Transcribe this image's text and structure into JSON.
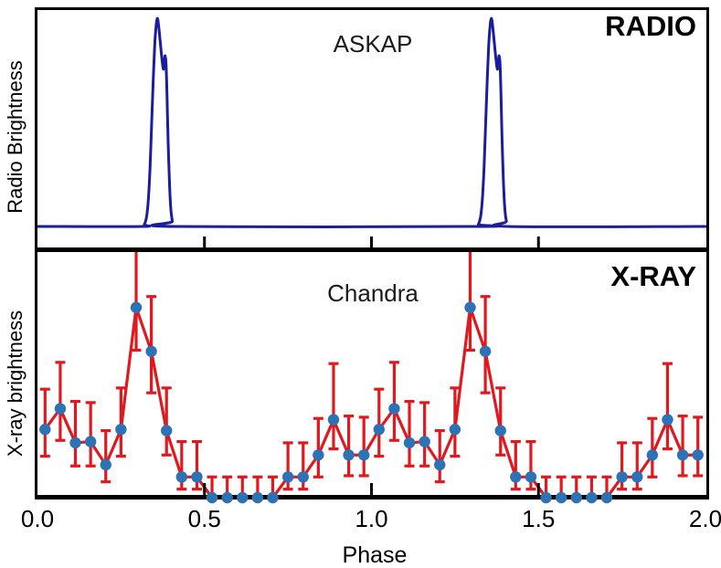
{
  "axis": {
    "xlabel": "Phase",
    "xlim": [
      0,
      2
    ],
    "tick_labels": [
      "0.0",
      "0.5",
      "1.0",
      "1.5",
      "2.0"
    ],
    "tick_values": [
      0,
      0.5,
      1.0,
      1.5,
      2.0
    ],
    "inner_tick_values": [
      0.5,
      1.0,
      1.5
    ]
  },
  "radio_panel": {
    "label": "RADIO",
    "instrument": "ASKAP",
    "ylabel": "Radio Brightness",
    "curve_color": "#1c1c9c"
  },
  "xray_panel": {
    "label": "X-RAY",
    "instrument": "Chandra",
    "ylabel": "X-ray brightness",
    "errorbar_color": "#e0191f",
    "marker_color": "#2c72b4"
  },
  "chart_data": [
    {
      "type": "line",
      "panel": "RADIO",
      "instrument": "ASKAP",
      "ylabel": "Radio Brightness",
      "xlabel": "Phase",
      "xlim": [
        0,
        2
      ],
      "color": "#1c1c9c",
      "value_units": "normalized brightness, 0 = baseline, 1 = pulse peak",
      "points": [
        [
          0.0,
          0.0
        ],
        [
          0.31,
          0.0
        ],
        [
          0.32,
          0.01
        ],
        [
          0.327,
          0.05
        ],
        [
          0.332,
          0.13
        ],
        [
          0.337,
          0.28
        ],
        [
          0.342,
          0.5
        ],
        [
          0.347,
          0.72
        ],
        [
          0.351,
          0.87
        ],
        [
          0.355,
          0.96
        ],
        [
          0.359,
          1.0
        ],
        [
          0.363,
          0.96
        ],
        [
          0.368,
          0.88
        ],
        [
          0.373,
          0.8
        ],
        [
          0.377,
          0.755
        ],
        [
          0.38,
          0.79
        ],
        [
          0.382,
          0.82
        ],
        [
          0.385,
          0.78
        ],
        [
          0.388,
          0.62
        ],
        [
          0.391,
          0.42
        ],
        [
          0.395,
          0.22
        ],
        [
          0.399,
          0.09
        ],
        [
          0.404,
          0.025
        ],
        [
          0.41,
          0.0
        ],
        [
          1.31,
          0.0
        ],
        [
          1.32,
          0.01
        ],
        [
          1.327,
          0.05
        ],
        [
          1.332,
          0.13
        ],
        [
          1.337,
          0.28
        ],
        [
          1.342,
          0.5
        ],
        [
          1.347,
          0.72
        ],
        [
          1.351,
          0.87
        ],
        [
          1.355,
          0.96
        ],
        [
          1.359,
          1.0
        ],
        [
          1.363,
          0.96
        ],
        [
          1.368,
          0.88
        ],
        [
          1.373,
          0.8
        ],
        [
          1.377,
          0.755
        ],
        [
          1.38,
          0.79
        ],
        [
          1.382,
          0.82
        ],
        [
          1.385,
          0.78
        ],
        [
          1.388,
          0.62
        ],
        [
          1.391,
          0.42
        ],
        [
          1.395,
          0.22
        ],
        [
          1.399,
          0.09
        ],
        [
          1.404,
          0.025
        ],
        [
          1.41,
          0.0
        ],
        [
          2.0,
          0.0
        ]
      ]
    },
    {
      "type": "errorbar-line",
      "panel": "X-RAY",
      "instrument": "Chandra",
      "ylabel": "X-ray brightness",
      "xlabel": "Phase",
      "xlim": [
        0,
        2
      ],
      "line_color": "#e0191f",
      "marker_color": "#2c72b4",
      "value_units": "normalized brightness, 0 = bottom axis, 1 = panel top",
      "points": [
        {
          "phase": 0.0227,
          "v": 0.28,
          "eu": 0.165,
          "ed": 0.11
        },
        {
          "phase": 0.0682,
          "v": 0.365,
          "eu": 0.19,
          "ed": 0.13
        },
        {
          "phase": 0.1136,
          "v": 0.225,
          "eu": 0.17,
          "ed": 0.095
        },
        {
          "phase": 0.1591,
          "v": 0.23,
          "eu": 0.16,
          "ed": 0.1
        },
        {
          "phase": 0.2045,
          "v": 0.135,
          "eu": 0.14,
          "ed": 0.07
        },
        {
          "phase": 0.25,
          "v": 0.28,
          "eu": 0.17,
          "ed": 0.11
        },
        {
          "phase": 0.2955,
          "v": 0.78,
          "eu": 0.28,
          "ed": 0.175
        },
        {
          "phase": 0.3409,
          "v": 0.6,
          "eu": 0.225,
          "ed": 0.17
        },
        {
          "phase": 0.3864,
          "v": 0.275,
          "eu": 0.175,
          "ed": 0.1
        },
        {
          "phase": 0.4318,
          "v": 0.085,
          "eu": 0.145,
          "ed": 0.05
        },
        {
          "phase": 0.4773,
          "v": 0.085,
          "eu": 0.145,
          "ed": 0.05
        },
        {
          "phase": 0.5227,
          "v": 0.0,
          "eu": 0.085,
          "ed": 0.0
        },
        {
          "phase": 0.5682,
          "v": 0.0,
          "eu": 0.085,
          "ed": 0.0
        },
        {
          "phase": 0.6136,
          "v": 0.0,
          "eu": 0.085,
          "ed": 0.0
        },
        {
          "phase": 0.6591,
          "v": 0.0,
          "eu": 0.085,
          "ed": 0.0
        },
        {
          "phase": 0.7045,
          "v": 0.0,
          "eu": 0.085,
          "ed": 0.0
        },
        {
          "phase": 0.75,
          "v": 0.085,
          "eu": 0.14,
          "ed": 0.05
        },
        {
          "phase": 0.7955,
          "v": 0.085,
          "eu": 0.14,
          "ed": 0.05
        },
        {
          "phase": 0.8409,
          "v": 0.175,
          "eu": 0.15,
          "ed": 0.09
        },
        {
          "phase": 0.8864,
          "v": 0.32,
          "eu": 0.23,
          "ed": 0.12
        },
        {
          "phase": 0.9318,
          "v": 0.175,
          "eu": 0.16,
          "ed": 0.085
        },
        {
          "phase": 0.9773,
          "v": 0.175,
          "eu": 0.155,
          "ed": 0.085
        },
        {
          "phase": 1.0227,
          "v": 0.28,
          "eu": 0.165,
          "ed": 0.11
        },
        {
          "phase": 1.0682,
          "v": 0.365,
          "eu": 0.19,
          "ed": 0.13
        },
        {
          "phase": 1.1136,
          "v": 0.225,
          "eu": 0.17,
          "ed": 0.095
        },
        {
          "phase": 1.1591,
          "v": 0.23,
          "eu": 0.16,
          "ed": 0.1
        },
        {
          "phase": 1.2045,
          "v": 0.135,
          "eu": 0.14,
          "ed": 0.07
        },
        {
          "phase": 1.25,
          "v": 0.28,
          "eu": 0.17,
          "ed": 0.11
        },
        {
          "phase": 1.2955,
          "v": 0.78,
          "eu": 0.28,
          "ed": 0.175
        },
        {
          "phase": 1.3409,
          "v": 0.6,
          "eu": 0.225,
          "ed": 0.17
        },
        {
          "phase": 1.3864,
          "v": 0.275,
          "eu": 0.175,
          "ed": 0.1
        },
        {
          "phase": 1.4318,
          "v": 0.085,
          "eu": 0.145,
          "ed": 0.05
        },
        {
          "phase": 1.4773,
          "v": 0.085,
          "eu": 0.145,
          "ed": 0.05
        },
        {
          "phase": 1.5227,
          "v": 0.0,
          "eu": 0.085,
          "ed": 0.0
        },
        {
          "phase": 1.5682,
          "v": 0.0,
          "eu": 0.085,
          "ed": 0.0
        },
        {
          "phase": 1.6136,
          "v": 0.0,
          "eu": 0.085,
          "ed": 0.0
        },
        {
          "phase": 1.6591,
          "v": 0.0,
          "eu": 0.085,
          "ed": 0.0
        },
        {
          "phase": 1.7045,
          "v": 0.0,
          "eu": 0.085,
          "ed": 0.0
        },
        {
          "phase": 1.75,
          "v": 0.085,
          "eu": 0.14,
          "ed": 0.05
        },
        {
          "phase": 1.7955,
          "v": 0.085,
          "eu": 0.14,
          "ed": 0.05
        },
        {
          "phase": 1.8409,
          "v": 0.175,
          "eu": 0.15,
          "ed": 0.09
        },
        {
          "phase": 1.8864,
          "v": 0.32,
          "eu": 0.23,
          "ed": 0.12
        },
        {
          "phase": 1.9318,
          "v": 0.175,
          "eu": 0.16,
          "ed": 0.085
        },
        {
          "phase": 1.9773,
          "v": 0.175,
          "eu": 0.155,
          "ed": 0.085
        }
      ]
    }
  ]
}
